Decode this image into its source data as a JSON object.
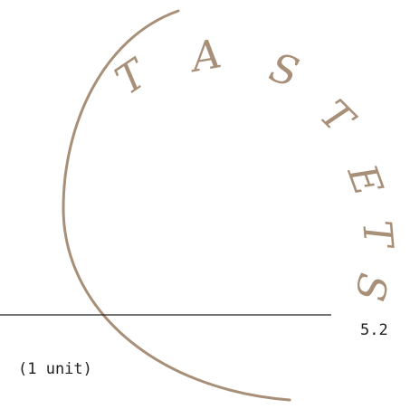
{
  "logo": {
    "letters": [
      "T",
      "A",
      "S",
      "T",
      "E",
      "T",
      "S"
    ],
    "color": "#a88f78"
  },
  "menu_item": {
    "price": "5.2",
    "unit": "(1 unit)"
  },
  "divider": {
    "color": "#222222"
  }
}
